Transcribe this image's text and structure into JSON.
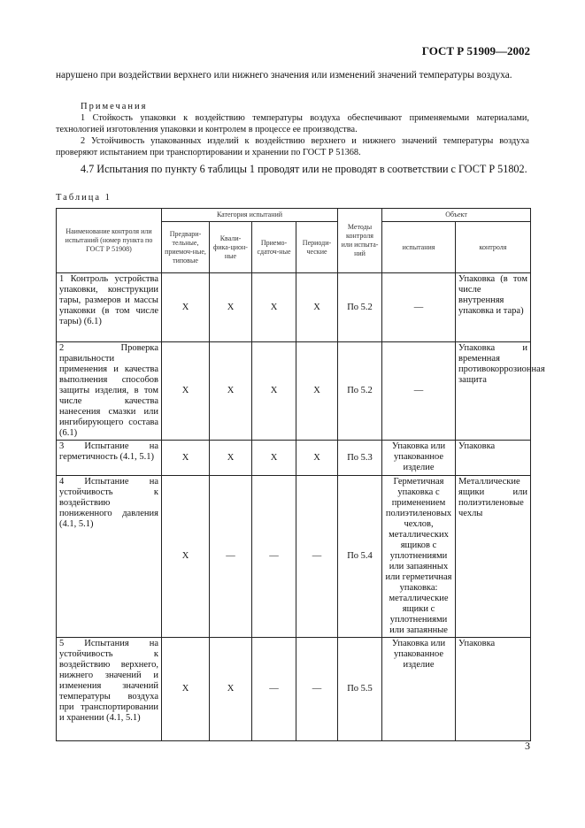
{
  "header": {
    "doc_id": "ГОСТ Р 51909—2002"
  },
  "body": {
    "para_cont": "нарушено при воздействии верхнего или нижнего значения или изменений значений температуры воздуха.",
    "notes_title": "Примечания",
    "note1": "1 Стойкость упаковки к воздействию температуры воздуха обеспечивают применяемыми материалами, технологией изготовления упаковки и контролем в процессе ее производства.",
    "note2": "2 Устойчивость упакованных изделий к воздействию верхнего и нижнего значений температуры воздуха проверяют испытанием при транспортировании и хранении по ГОСТ Р 51368.",
    "para_4_7": "4.7 Испытания по пункту 6 таблицы 1 проводят или не проводят в соответствии с ГОСТ Р 51802.",
    "table_caption": "Таблица 1"
  },
  "table": {
    "headers": {
      "name": "Наименование контроля или испытаний (номер пункта по ГОСТ Р 51908)",
      "category": "Категория испытаний",
      "cat_prelim": "Предвари-тельные, приемоч-ные, типовые",
      "cat_qual": "Квали-фика-цион-ные",
      "cat_accept": "Приемо-сдаточ-ные",
      "cat_period": "Периоди-ческие",
      "methods": "Методы контроля или испыта-ний",
      "object": "Объект",
      "obj_test": "испытания",
      "obj_control": "контроля"
    },
    "rows": [
      {
        "name": "1 Контроль устройства упаковки, конструкции тары, размеров и массы упаковки (в том числе тары) (6.1)",
        "prelim": "X",
        "qual": "X",
        "accept": "X",
        "period": "X",
        "method": "По 5.2",
        "obj_test": "—",
        "obj_control": "Упаковка (в том числе внутренняя упаковка и тара)"
      },
      {
        "name": "2 Проверка правильности применения и качества выполнения способов защиты изделия, в том числе качества нанесения смазки или ингибирующего состава (6.1)",
        "prelim": "X",
        "qual": "X",
        "accept": "X",
        "period": "X",
        "method": "По 5.2",
        "obj_test": "—",
        "obj_control": "Упаковка и временная противокоррозионная защита"
      },
      {
        "name": "3 Испытание на герметичность (4.1, 5.1)",
        "prelim": "X",
        "qual": "X",
        "accept": "X",
        "period": "X",
        "method": "По 5.3",
        "obj_test": "Упаковка или упакованное изделие",
        "obj_control": "Упаковка"
      },
      {
        "name": "4 Испытание на устойчивость к воздействию пониженного давления (4.1, 5.1)",
        "prelim": "X",
        "qual": "—",
        "accept": "—",
        "period": "—",
        "method": "По 5.4",
        "obj_test": "Герметичная упаковка с применением полиэтиленовых чехлов, металлических ящиков с уплотнениями или запаянных или герметичная упаковка: металлические ящики с уплотнениями или запаянные",
        "obj_control": "Металлические ящики или полиэтиленовые чехлы"
      },
      {
        "name": "5 Испытания на устойчивость к воздействию верхнего, нижнего значений и изменения значений температуры воздуха при транспортировании и хранении (4.1, 5.1)",
        "prelim": "X",
        "qual": "X",
        "accept": "—",
        "period": "—",
        "method": "По 5.5",
        "obj_test": "Упаковка или упакованное изделие",
        "obj_control": "Упаковка"
      }
    ]
  },
  "footer": {
    "page_number": "3"
  }
}
